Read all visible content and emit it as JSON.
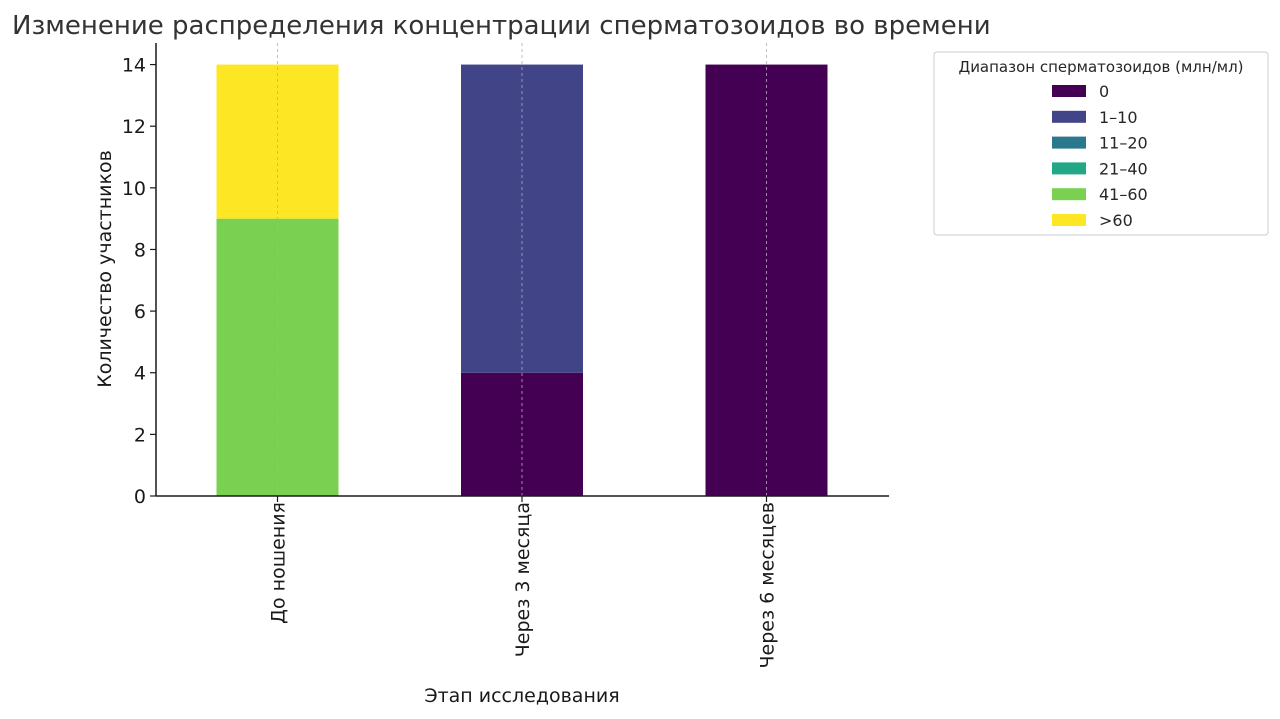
{
  "chart_data": {
    "type": "bar",
    "stacked": true,
    "title": "Изменение распределения концентрации сперматозоидов во времени",
    "xlabel": "Этап исследования",
    "ylabel": "Количество участников",
    "categories": [
      "До ношения",
      "Через 3 месяца",
      "Через 6 месяцев"
    ],
    "ylim": [
      0,
      14.7
    ],
    "yticks": [
      "0",
      "2",
      "4",
      "6",
      "8",
      "10",
      "12",
      "14"
    ],
    "grid": "vertical dashed at categories",
    "legend": {
      "title": "Диапазон сперматозоидов (млн/мл)",
      "placement": "top-right outside"
    },
    "series": [
      {
        "name": "0",
        "color": "#440154",
        "values": [
          0,
          4,
          14
        ]
      },
      {
        "name": "1–10",
        "color": "#414487",
        "values": [
          0,
          10,
          0
        ]
      },
      {
        "name": "11–20",
        "color": "#2a788e",
        "values": [
          0,
          0,
          0
        ]
      },
      {
        "name": "21–40",
        "color": "#22a884",
        "values": [
          0,
          0,
          0
        ]
      },
      {
        "name": "41–60",
        "color": "#7ad151",
        "values": [
          9,
          0,
          0
        ]
      },
      {
        "name": ">60",
        "color": "#fde725",
        "values": [
          5,
          0,
          0
        ]
      }
    ]
  }
}
